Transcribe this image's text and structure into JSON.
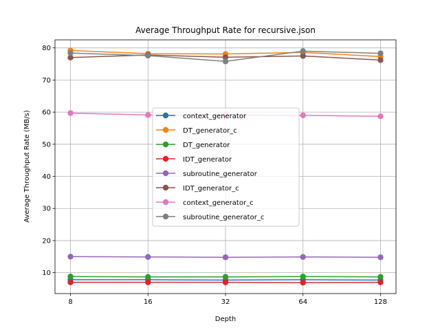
{
  "chart_data": {
    "type": "line",
    "title": "Average Throughput Rate for recursive.json",
    "xlabel": "Depth",
    "ylabel": "Average Throughput Rate (MB/s)",
    "x": [
      8,
      16,
      32,
      64,
      128
    ],
    "x_tick_labels": [
      "8",
      "16",
      "32",
      "64",
      "128"
    ],
    "x_scale": "log2",
    "ylim": [
      3.5,
      82.5
    ],
    "y_ticks": [
      10,
      20,
      30,
      40,
      50,
      60,
      70,
      80
    ],
    "grid": true,
    "legend_position": "center",
    "series": [
      {
        "name": "context_generator",
        "color": "#1f77b4",
        "values": [
          7.8,
          7.8,
          7.7,
          7.8,
          7.7
        ]
      },
      {
        "name": "DT_generator_c",
        "color": "#ff7f0e",
        "values": [
          79.2,
          78.2,
          78.1,
          78.6,
          77.3
        ]
      },
      {
        "name": "DT_generator",
        "color": "#2ca02c",
        "values": [
          8.8,
          8.7,
          8.7,
          8.8,
          8.7
        ]
      },
      {
        "name": "IDT_generator",
        "color": "#d62728",
        "values": [
          7.0,
          7.0,
          7.0,
          6.9,
          7.0
        ]
      },
      {
        "name": "subroutine_generator",
        "color": "#9467bd",
        "values": [
          15.0,
          14.9,
          14.8,
          14.9,
          14.8
        ]
      },
      {
        "name": "IDT_generator_c",
        "color": "#8c564b",
        "values": [
          77.0,
          77.8,
          77.1,
          77.5,
          76.2
        ]
      },
      {
        "name": "context_generator_c",
        "color": "#e377c2",
        "values": [
          59.7,
          59.1,
          59.1,
          59.0,
          58.7
        ]
      },
      {
        "name": "subroutine_generator_c",
        "color": "#7f7f7f",
        "values": [
          78.4,
          77.6,
          75.8,
          79.0,
          78.3
        ]
      }
    ]
  }
}
